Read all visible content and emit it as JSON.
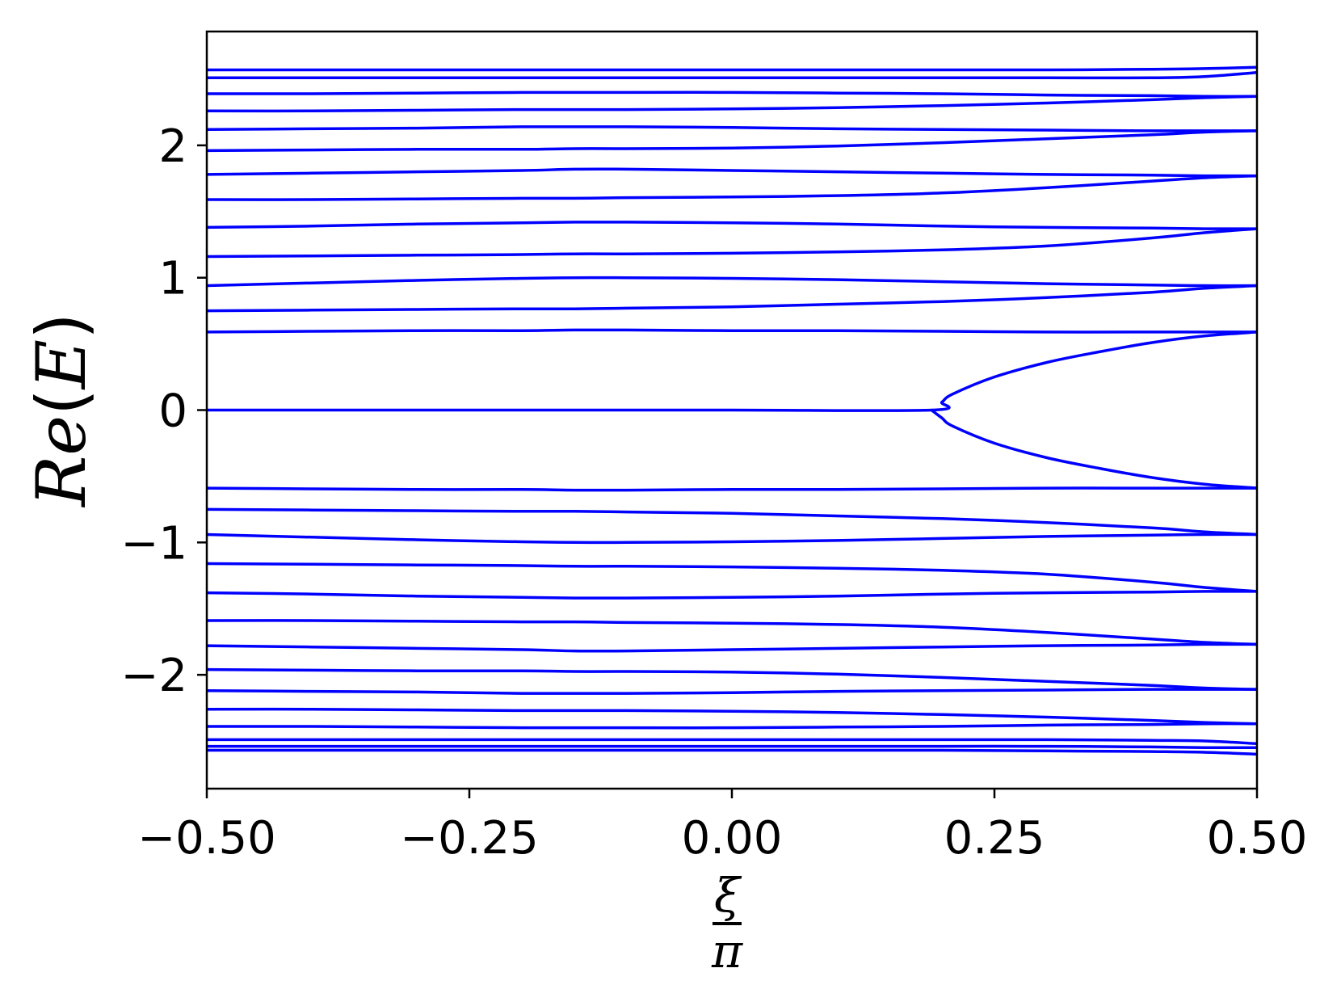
{
  "chart_data": {
    "type": "line",
    "title": "",
    "xlabel": {
      "numerator": "ξ",
      "denominator": "π"
    },
    "ylabel": {
      "prefix": "Re",
      "open": "(",
      "var": "E",
      "close": ")"
    },
    "xlim": [
      -0.5,
      0.5
    ],
    "ylim": [
      -2.86,
      2.86
    ],
    "x_ticks": [
      -0.5,
      -0.25,
      0.0,
      0.25,
      0.5
    ],
    "x_tick_labels": [
      "−0.50",
      "−0.25",
      "0.00",
      "0.25",
      "0.50"
    ],
    "y_ticks": [
      -2,
      -1,
      0,
      1,
      2
    ],
    "y_tick_labels": [
      "−2",
      "−1",
      "0",
      "1",
      "2"
    ],
    "grid": false,
    "legend": "none",
    "line_color": "#0000ff",
    "x": [
      -0.5,
      -0.4,
      -0.3,
      -0.2,
      -0.15,
      -0.1,
      0.0,
      0.1,
      0.2,
      0.3,
      0.4,
      0.45,
      0.5
    ],
    "series": [
      {
        "values": [
          2.57,
          2.57,
          2.57,
          2.57,
          2.57,
          2.57,
          2.57,
          2.57,
          2.57,
          2.57,
          2.575,
          2.58,
          2.59
        ]
      },
      {
        "values": [
          2.51,
          2.51,
          2.51,
          2.51,
          2.51,
          2.51,
          2.51,
          2.51,
          2.51,
          2.51,
          2.51,
          2.52,
          2.55
        ]
      },
      {
        "values": [
          2.39,
          2.39,
          2.395,
          2.4,
          2.4,
          2.4,
          2.4,
          2.395,
          2.39,
          2.38,
          2.375,
          2.37,
          2.37
        ]
      },
      {
        "values": [
          2.26,
          2.26,
          2.265,
          2.27,
          2.27,
          2.27,
          2.275,
          2.285,
          2.3,
          2.32,
          2.345,
          2.36,
          2.37
        ]
      },
      {
        "values": [
          2.12,
          2.125,
          2.13,
          2.14,
          2.14,
          2.14,
          2.135,
          2.125,
          2.12,
          2.115,
          2.11,
          2.11,
          2.11
        ]
      },
      {
        "values": [
          1.96,
          1.965,
          1.97,
          1.97,
          1.975,
          1.975,
          1.98,
          1.995,
          2.02,
          2.05,
          2.08,
          2.1,
          2.11
        ]
      },
      {
        "values": [
          1.78,
          1.79,
          1.8,
          1.81,
          1.82,
          1.82,
          1.81,
          1.8,
          1.79,
          1.78,
          1.775,
          1.77,
          1.77
        ]
      },
      {
        "values": [
          1.59,
          1.59,
          1.595,
          1.6,
          1.6,
          1.605,
          1.61,
          1.62,
          1.64,
          1.68,
          1.73,
          1.755,
          1.77
        ]
      },
      {
        "values": [
          1.38,
          1.39,
          1.405,
          1.415,
          1.42,
          1.42,
          1.415,
          1.405,
          1.39,
          1.38,
          1.375,
          1.37,
          1.37
        ]
      },
      {
        "values": [
          1.16,
          1.165,
          1.17,
          1.175,
          1.18,
          1.18,
          1.185,
          1.195,
          1.21,
          1.24,
          1.3,
          1.34,
          1.37
        ]
      },
      {
        "values": [
          0.94,
          0.96,
          0.98,
          0.995,
          1.0,
          1.0,
          0.995,
          0.985,
          0.97,
          0.955,
          0.945,
          0.94,
          0.94
        ]
      },
      {
        "values": [
          0.75,
          0.755,
          0.76,
          0.765,
          0.765,
          0.77,
          0.78,
          0.8,
          0.82,
          0.85,
          0.89,
          0.92,
          0.94
        ]
      },
      {
        "values": [
          0.59,
          0.595,
          0.6,
          0.6,
          0.605,
          0.605,
          0.6,
          0.6,
          0.595,
          0.59,
          0.59,
          0.59,
          0.59
        ]
      },
      {
        "x": [
          -0.5,
          -0.2,
          0.0,
          0.19,
          0.2,
          0.21,
          0.25,
          0.3,
          0.35,
          0.4,
          0.45,
          0.5
        ],
        "values": [
          0.0,
          0.0,
          0.0,
          0.0,
          0.06,
          0.12,
          0.25,
          0.36,
          0.44,
          0.51,
          0.56,
          0.59
        ]
      },
      {
        "x": [
          0.19,
          0.2,
          0.21,
          0.25,
          0.3,
          0.35,
          0.4,
          0.45,
          0.5
        ],
        "values": [
          0.0,
          -0.06,
          -0.12,
          -0.25,
          -0.36,
          -0.44,
          -0.51,
          -0.56,
          -0.59
        ]
      },
      {
        "values": [
          -0.59,
          -0.595,
          -0.6,
          -0.6,
          -0.605,
          -0.605,
          -0.6,
          -0.6,
          -0.595,
          -0.59,
          -0.59,
          -0.59,
          -0.59
        ]
      },
      {
        "values": [
          -0.75,
          -0.755,
          -0.76,
          -0.765,
          -0.765,
          -0.77,
          -0.78,
          -0.8,
          -0.82,
          -0.85,
          -0.89,
          -0.92,
          -0.94
        ]
      },
      {
        "values": [
          -0.94,
          -0.96,
          -0.98,
          -0.995,
          -1.0,
          -1.0,
          -0.995,
          -0.985,
          -0.97,
          -0.955,
          -0.945,
          -0.94,
          -0.94
        ]
      },
      {
        "values": [
          -1.16,
          -1.165,
          -1.17,
          -1.175,
          -1.18,
          -1.18,
          -1.185,
          -1.195,
          -1.21,
          -1.24,
          -1.3,
          -1.34,
          -1.37
        ]
      },
      {
        "values": [
          -1.38,
          -1.39,
          -1.405,
          -1.415,
          -1.42,
          -1.42,
          -1.415,
          -1.405,
          -1.39,
          -1.38,
          -1.375,
          -1.37,
          -1.37
        ]
      },
      {
        "values": [
          -1.59,
          -1.59,
          -1.595,
          -1.6,
          -1.6,
          -1.605,
          -1.61,
          -1.62,
          -1.64,
          -1.68,
          -1.73,
          -1.755,
          -1.77
        ]
      },
      {
        "values": [
          -1.78,
          -1.79,
          -1.8,
          -1.81,
          -1.82,
          -1.82,
          -1.81,
          -1.8,
          -1.79,
          -1.78,
          -1.775,
          -1.77,
          -1.77
        ]
      },
      {
        "values": [
          -1.96,
          -1.965,
          -1.97,
          -1.97,
          -1.975,
          -1.975,
          -1.98,
          -1.995,
          -2.02,
          -2.05,
          -2.08,
          -2.1,
          -2.11
        ]
      },
      {
        "values": [
          -2.12,
          -2.125,
          -2.13,
          -2.14,
          -2.14,
          -2.14,
          -2.135,
          -2.125,
          -2.12,
          -2.115,
          -2.11,
          -2.11,
          -2.11
        ]
      },
      {
        "values": [
          -2.26,
          -2.26,
          -2.265,
          -2.27,
          -2.27,
          -2.27,
          -2.275,
          -2.285,
          -2.3,
          -2.32,
          -2.345,
          -2.36,
          -2.37
        ]
      },
      {
        "values": [
          -2.39,
          -2.39,
          -2.395,
          -2.4,
          -2.4,
          -2.4,
          -2.4,
          -2.395,
          -2.39,
          -2.38,
          -2.375,
          -2.37,
          -2.37
        ]
      },
      {
        "values": [
          -2.49,
          -2.49,
          -2.49,
          -2.49,
          -2.49,
          -2.49,
          -2.49,
          -2.49,
          -2.49,
          -2.49,
          -2.495,
          -2.5,
          -2.52
        ]
      },
      {
        "values": [
          -2.54,
          -2.54,
          -2.54,
          -2.54,
          -2.54,
          -2.54,
          -2.54,
          -2.54,
          -2.54,
          -2.54,
          -2.545,
          -2.55,
          -2.55
        ]
      },
      {
        "values": [
          -2.57,
          -2.57,
          -2.57,
          -2.57,
          -2.57,
          -2.57,
          -2.57,
          -2.57,
          -2.57,
          -2.575,
          -2.58,
          -2.585,
          -2.6
        ]
      }
    ]
  }
}
